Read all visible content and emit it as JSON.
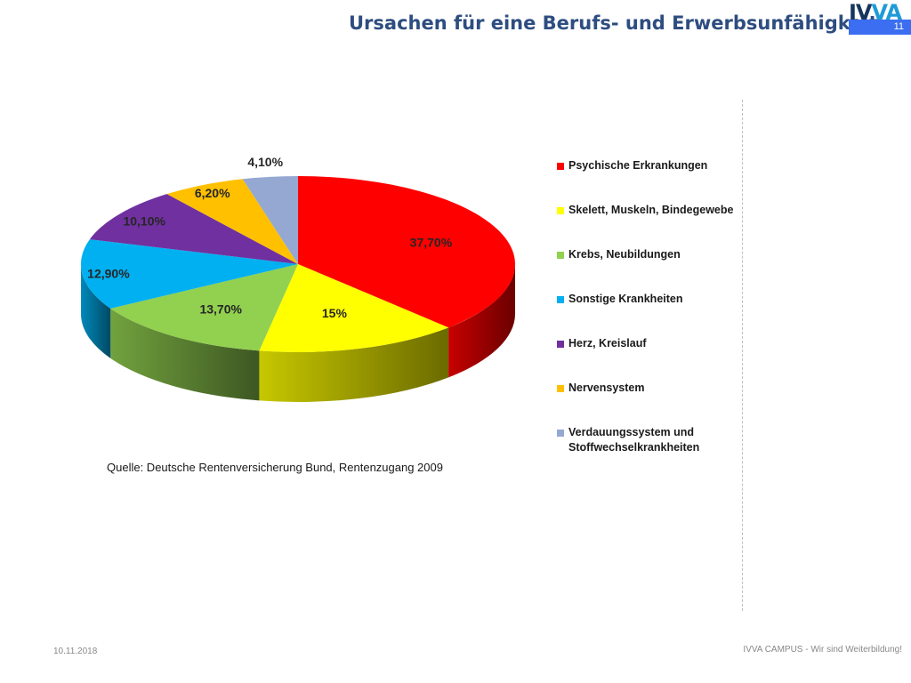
{
  "header": {
    "title": "Ursachen für eine Berufs-  und Erwerbsunfähigkeit.",
    "logo_text": "IVVA",
    "slide_number": "11"
  },
  "chart_data": {
    "type": "pie",
    "title": "",
    "legend_position": "right",
    "categories": [
      "Psychische Erkrankungen",
      "Skelett, Muskeln, Bindegewebe",
      "Krebs, Neubildungen",
      "Sonstige Krankheiten",
      "Herz, Kreislauf",
      "Nervensystem",
      "Verdauungssystem und Stoffwechselkrankheiten"
    ],
    "values": [
      37.7,
      15,
      13.7,
      12.9,
      10.1,
      6.2,
      4.1
    ],
    "data_labels": [
      "37,70%",
      "15%",
      "13,70%",
      "12,90%",
      "10,10%",
      "6,20%",
      "4,10%"
    ],
    "colors": [
      "#ff0000",
      "#ffff00",
      "#92d050",
      "#00b0f0",
      "#7030a0",
      "#ffc000",
      "#95a8d2"
    ],
    "legend": [
      "Psychische Erkrankungen",
      "Skelett, Muskeln, Bindegewebe",
      "Krebs, Neubildungen",
      "Sonstige Krankheiten",
      "Herz, Kreislauf",
      "Nervensystem",
      "Verdauungssystem und Stoffwechselkrankheiten"
    ]
  },
  "source": "Quelle: Deutsche Rentenversicherung Bund, Rentenzugang 2009",
  "footer": {
    "date": "10.11.2018",
    "tagline": "IVVA CAMPUS - Wir sind Weiterbildung!"
  }
}
